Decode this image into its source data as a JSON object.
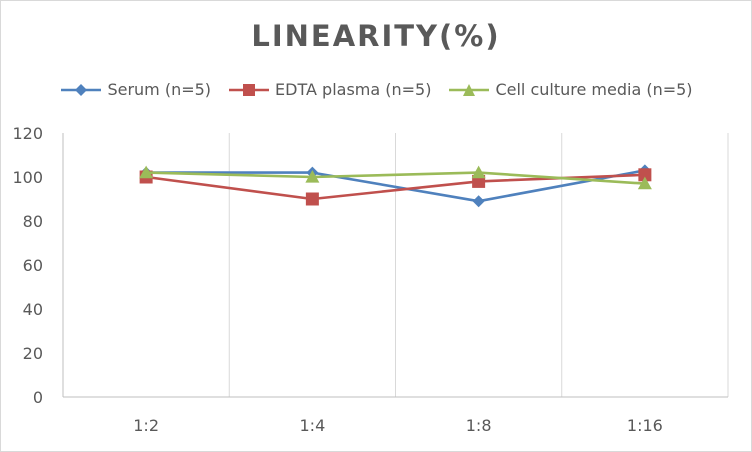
{
  "chart_data": {
    "type": "line",
    "title": "LINEARITY(%)",
    "xlabel": "",
    "ylabel": "",
    "categories": [
      "1:2",
      "1:4",
      "1:8",
      "1:16"
    ],
    "ylim": [
      0,
      120
    ],
    "yticks": [
      0,
      20,
      40,
      60,
      80,
      100,
      120
    ],
    "grid": "vertical",
    "legend_position": "top",
    "series": [
      {
        "name": "Serum (n=5)",
        "values": [
          102,
          102,
          89,
          103
        ],
        "color": "#4f81bd",
        "marker": "diamond"
      },
      {
        "name": "EDTA plasma (n=5)",
        "values": [
          100,
          90,
          98,
          101
        ],
        "color": "#c0504d",
        "marker": "square"
      },
      {
        "name": "Cell culture media (n=5)",
        "values": [
          102,
          100,
          102,
          97
        ],
        "color": "#9bbb59",
        "marker": "triangle"
      }
    ]
  }
}
